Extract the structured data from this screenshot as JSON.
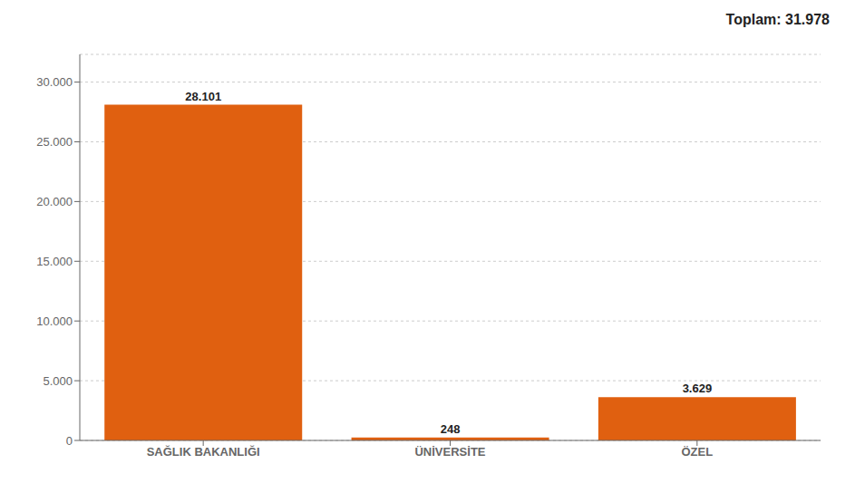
{
  "chart_data": {
    "type": "bar",
    "categories": [
      "SAĞLIK BAKANLIĞI",
      "ÜNİVERSİTE",
      "ÖZEL"
    ],
    "values": [
      28101,
      248,
      3629
    ],
    "value_labels": [
      "28.101",
      "248",
      "3.629"
    ],
    "data_labels": true,
    "color": "#E06010",
    "ylim": [
      0,
      32320
    ],
    "yticks": [
      0,
      {
        "value": 5000,
        "label": "5.000"
      },
      {
        "value": 10000,
        "label": "10.000"
      },
      {
        "value": 15000,
        "label": "15.000"
      },
      {
        "value": 20000,
        "label": "20.000"
      },
      {
        "value": 25000,
        "label": "25.000"
      },
      {
        "value": 30000,
        "label": "30.000"
      }
    ],
    "grid": true,
    "annotations": [
      "Toplam: 31.978"
    ]
  }
}
